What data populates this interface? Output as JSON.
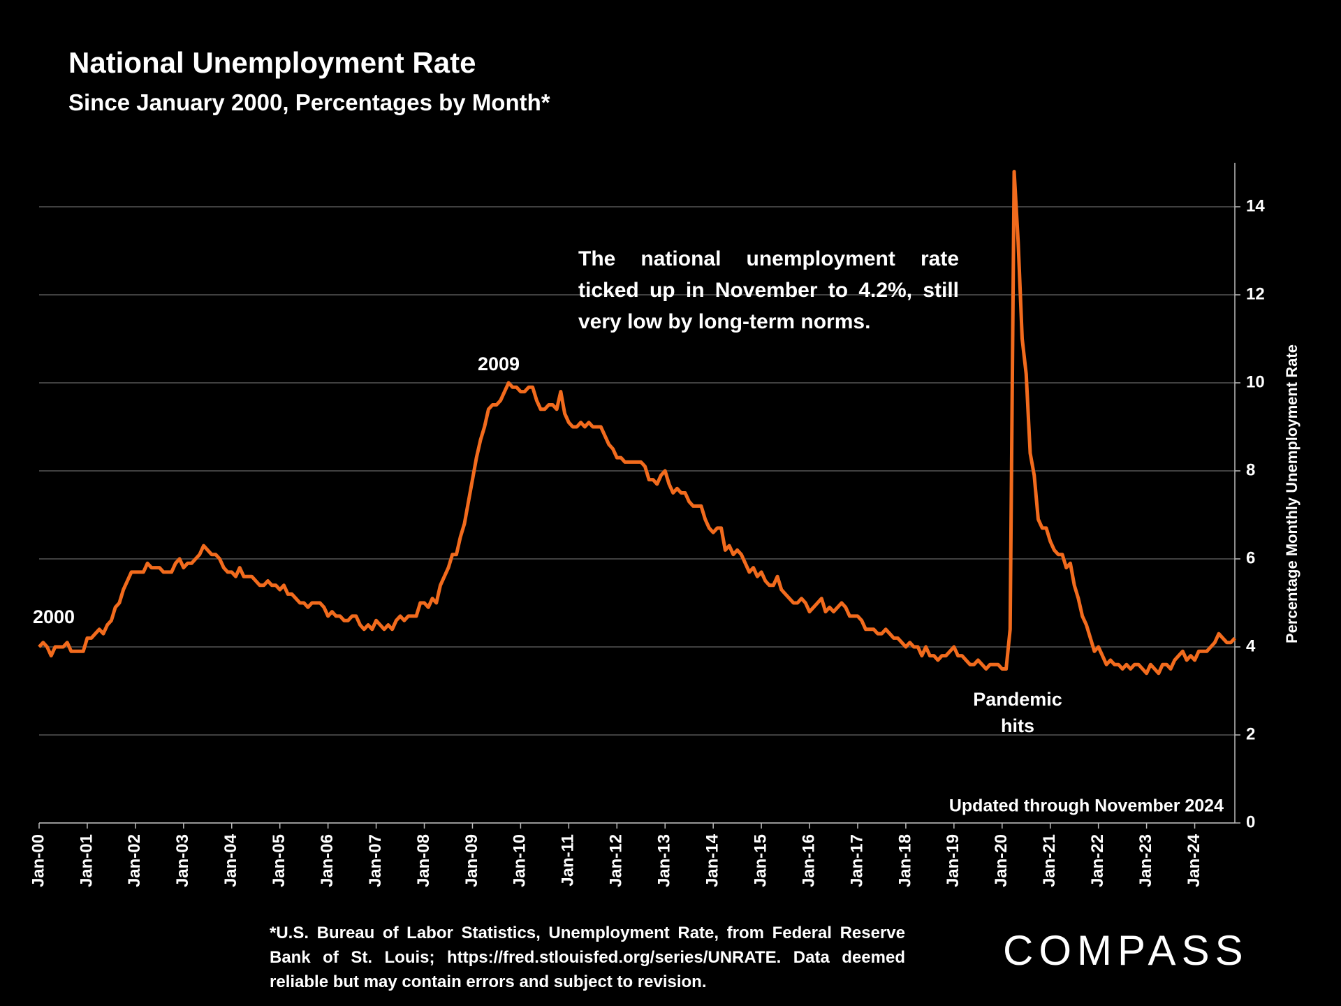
{
  "chart_data": {
    "type": "line",
    "title": "National Unemployment Rate",
    "subtitle": "Since January 2000, Percentages by Month*",
    "y_label": "Percentage Monthly Unemployment Rate",
    "annotations": [
      "2000",
      "2009",
      "The national unemployment rate ticked up in November to 4.2%, still very low by long-term norms.",
      "Pandemic hits",
      "Updated through November 2024"
    ],
    "footnote": "*U.S. Bureau of Labor Statistics, Unemployment Rate, from Federal Reserve Bank of St. Louis; https://fred.stlouisfed.org/series/UNRATE. Data deemed reliable but may contain errors and subject to revision.",
    "logo": "COMPASS",
    "color": "#f26b1d",
    "ylim": [
      0,
      15
    ],
    "yticks": [
      0,
      2,
      4,
      6,
      8,
      10,
      12,
      14
    ],
    "grid": true,
    "y_axis_side": "right",
    "categories": [
      "Jan-00",
      null,
      null,
      null,
      null,
      null,
      null,
      null,
      null,
      null,
      null,
      null,
      "Jan-01",
      null,
      null,
      null,
      null,
      null,
      null,
      null,
      null,
      null,
      null,
      null,
      "Jan-02",
      null,
      null,
      null,
      null,
      null,
      null,
      null,
      null,
      null,
      null,
      null,
      "Jan-03",
      null,
      null,
      null,
      null,
      null,
      null,
      null,
      null,
      null,
      null,
      null,
      "Jan-04",
      null,
      null,
      null,
      null,
      null,
      null,
      null,
      null,
      null,
      null,
      null,
      "Jan-05",
      null,
      null,
      null,
      null,
      null,
      null,
      null,
      null,
      null,
      null,
      null,
      "Jan-06",
      null,
      null,
      null,
      null,
      null,
      null,
      null,
      null,
      null,
      null,
      null,
      "Jan-07",
      null,
      null,
      null,
      null,
      null,
      null,
      null,
      null,
      null,
      null,
      null,
      "Jan-08",
      null,
      null,
      null,
      null,
      null,
      null,
      null,
      null,
      null,
      null,
      null,
      "Jan-09",
      null,
      null,
      null,
      null,
      null,
      null,
      null,
      null,
      null,
      null,
      null,
      "Jan-10",
      null,
      null,
      null,
      null,
      null,
      null,
      null,
      null,
      null,
      null,
      null,
      "Jan-11",
      null,
      null,
      null,
      null,
      null,
      null,
      null,
      null,
      null,
      null,
      null,
      "Jan-12",
      null,
      null,
      null,
      null,
      null,
      null,
      null,
      null,
      null,
      null,
      null,
      "Jan-13",
      null,
      null,
      null,
      null,
      null,
      null,
      null,
      null,
      null,
      null,
      null,
      "Jan-14",
      null,
      null,
      null,
      null,
      null,
      null,
      null,
      null,
      null,
      null,
      null,
      "Jan-15",
      null,
      null,
      null,
      null,
      null,
      null,
      null,
      null,
      null,
      null,
      null,
      "Jan-16",
      null,
      null,
      null,
      null,
      null,
      null,
      null,
      null,
      null,
      null,
      null,
      "Jan-17",
      null,
      null,
      null,
      null,
      null,
      null,
      null,
      null,
      null,
      null,
      null,
      "Jan-18",
      null,
      null,
      null,
      null,
      null,
      null,
      null,
      null,
      null,
      null,
      null,
      "Jan-19",
      null,
      null,
      null,
      null,
      null,
      null,
      null,
      null,
      null,
      null,
      null,
      "Jan-20",
      null,
      null,
      null,
      null,
      null,
      null,
      null,
      null,
      null,
      null,
      null,
      "Jan-21",
      null,
      null,
      null,
      null,
      null,
      null,
      null,
      null,
      null,
      null,
      null,
      "Jan-22",
      null,
      null,
      null,
      null,
      null,
      null,
      null,
      null,
      null,
      null,
      null,
      "Jan-23",
      null,
      null,
      null,
      null,
      null,
      null,
      null,
      null,
      null,
      null,
      null,
      "Jan-24",
      null,
      null,
      null,
      null,
      null,
      null,
      null,
      null,
      null,
      null
    ],
    "values": [
      4.0,
      4.1,
      4.0,
      3.8,
      4.0,
      4.0,
      4.0,
      4.1,
      3.9,
      3.9,
      3.9,
      3.9,
      4.2,
      4.2,
      4.3,
      4.4,
      4.3,
      4.5,
      4.6,
      4.9,
      5.0,
      5.3,
      5.5,
      5.7,
      5.7,
      5.7,
      5.7,
      5.9,
      5.8,
      5.8,
      5.8,
      5.7,
      5.7,
      5.7,
      5.9,
      6.0,
      5.8,
      5.9,
      5.9,
      6.0,
      6.1,
      6.3,
      6.2,
      6.1,
      6.1,
      6.0,
      5.8,
      5.7,
      5.7,
      5.6,
      5.8,
      5.6,
      5.6,
      5.6,
      5.5,
      5.4,
      5.4,
      5.5,
      5.4,
      5.4,
      5.3,
      5.4,
      5.2,
      5.2,
      5.1,
      5.0,
      5.0,
      4.9,
      5.0,
      5.0,
      5.0,
      4.9,
      4.7,
      4.8,
      4.7,
      4.7,
      4.6,
      4.6,
      4.7,
      4.7,
      4.5,
      4.4,
      4.5,
      4.4,
      4.6,
      4.5,
      4.4,
      4.5,
      4.4,
      4.6,
      4.7,
      4.6,
      4.7,
      4.7,
      4.7,
      5.0,
      5.0,
      4.9,
      5.1,
      5.0,
      5.4,
      5.6,
      5.8,
      6.1,
      6.1,
      6.5,
      6.8,
      7.3,
      7.8,
      8.3,
      8.7,
      9.0,
      9.4,
      9.5,
      9.5,
      9.6,
      9.8,
      10.0,
      9.9,
      9.9,
      9.8,
      9.8,
      9.9,
      9.9,
      9.6,
      9.4,
      9.4,
      9.5,
      9.5,
      9.4,
      9.8,
      9.3,
      9.1,
      9.0,
      9.0,
      9.1,
      9.0,
      9.1,
      9.0,
      9.0,
      9.0,
      8.8,
      8.6,
      8.5,
      8.3,
      8.3,
      8.2,
      8.2,
      8.2,
      8.2,
      8.2,
      8.1,
      7.8,
      7.8,
      7.7,
      7.9,
      8.0,
      7.7,
      7.5,
      7.6,
      7.5,
      7.5,
      7.3,
      7.2,
      7.2,
      7.2,
      6.9,
      6.7,
      6.6,
      6.7,
      6.7,
      6.2,
      6.3,
      6.1,
      6.2,
      6.1,
      5.9,
      5.7,
      5.8,
      5.6,
      5.7,
      5.5,
      5.4,
      5.4,
      5.6,
      5.3,
      5.2,
      5.1,
      5.0,
      5.0,
      5.1,
      5.0,
      4.8,
      4.9,
      5.0,
      5.1,
      4.8,
      4.9,
      4.8,
      4.9,
      5.0,
      4.9,
      4.7,
      4.7,
      4.7,
      4.6,
      4.4,
      4.4,
      4.4,
      4.3,
      4.3,
      4.4,
      4.3,
      4.2,
      4.2,
      4.1,
      4.0,
      4.1,
      4.0,
      4.0,
      3.8,
      4.0,
      3.8,
      3.8,
      3.7,
      3.8,
      3.8,
      3.9,
      4.0,
      3.8,
      3.8,
      3.7,
      3.6,
      3.6,
      3.7,
      3.6,
      3.5,
      3.6,
      3.6,
      3.6,
      3.5,
      3.5,
      4.4,
      14.8,
      13.2,
      11.0,
      10.2,
      8.4,
      7.9,
      6.9,
      6.7,
      6.7,
      6.4,
      6.2,
      6.1,
      6.1,
      5.8,
      5.9,
      5.4,
      5.1,
      4.7,
      4.5,
      4.2,
      3.9,
      4.0,
      3.8,
      3.6,
      3.7,
      3.6,
      3.6,
      3.5,
      3.6,
      3.5,
      3.6,
      3.6,
      3.5,
      3.4,
      3.6,
      3.5,
      3.4,
      3.6,
      3.6,
      3.5,
      3.7,
      3.8,
      3.9,
      3.7,
      3.8,
      3.7,
      3.9,
      3.9,
      3.9,
      4.0,
      4.1,
      4.3,
      4.2,
      4.1,
      4.1,
      4.2
    ]
  }
}
